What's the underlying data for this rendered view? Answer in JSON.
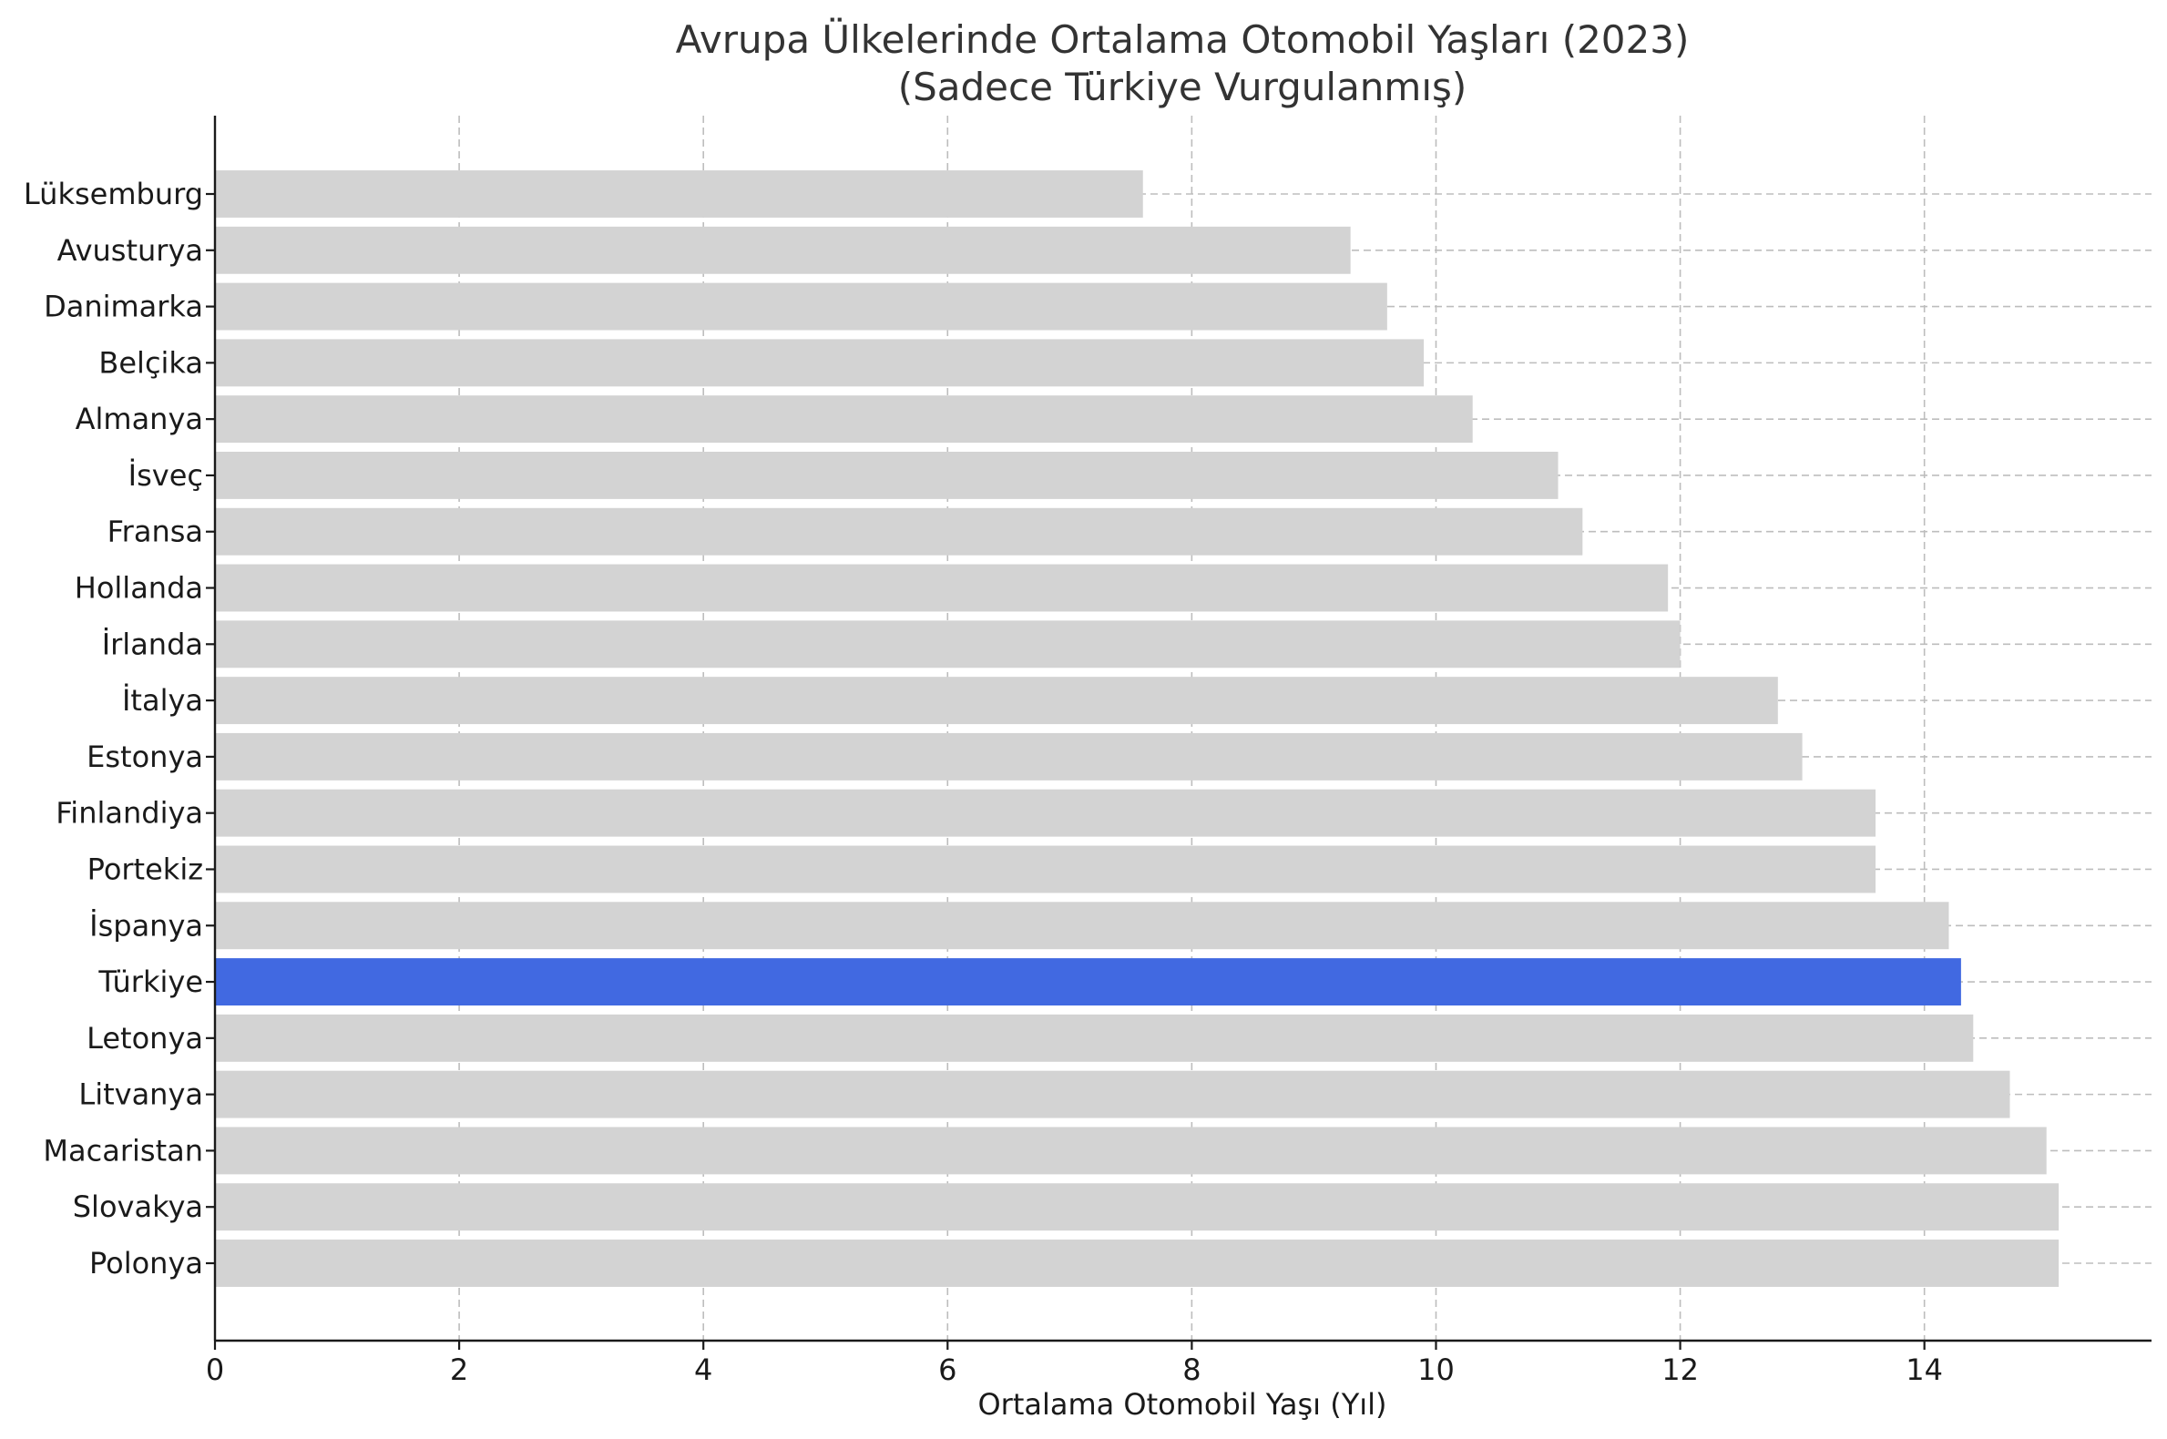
{
  "chart_data": {
    "type": "bar",
    "orientation": "horizontal",
    "title": "Avrupa Ülkelerinde Ortalama Otomobil Yaşları (2023)",
    "subtitle": "(Sadece Türkiye Vurgulanmış)",
    "xlabel": "Ortalama Otomobil Yaşı (Yıl)",
    "ylabel": "",
    "xlim": [
      0,
      15.86
    ],
    "xticks": [
      0,
      2,
      4,
      6,
      8,
      10,
      12,
      14
    ],
    "grid": true,
    "legend": "none",
    "categories": [
      "Lüksemburg",
      "Avusturya",
      "Danimarka",
      "Belçika",
      "Almanya",
      "İsveç",
      "Fransa",
      "Hollanda",
      "İrlanda",
      "İtalya",
      "Estonya",
      "Finlandiya",
      "Portekiz",
      "İspanya",
      "Türkiye",
      "Letonya",
      "Litvanya",
      "Macaristan",
      "Slovakya",
      "Polonya"
    ],
    "values": [
      7.6,
      9.3,
      9.6,
      9.9,
      10.3,
      11.0,
      11.2,
      11.9,
      12.0,
      12.8,
      13.0,
      13.6,
      13.6,
      14.2,
      14.3,
      14.4,
      14.7,
      15.0,
      15.1,
      15.1
    ],
    "highlight": "Türkiye",
    "colors": {
      "default": "#d3d3d3",
      "highlight": "#4169e1",
      "grid": "#bdbdbd",
      "axis": "#1a1a1a",
      "title": "#333333"
    }
  }
}
